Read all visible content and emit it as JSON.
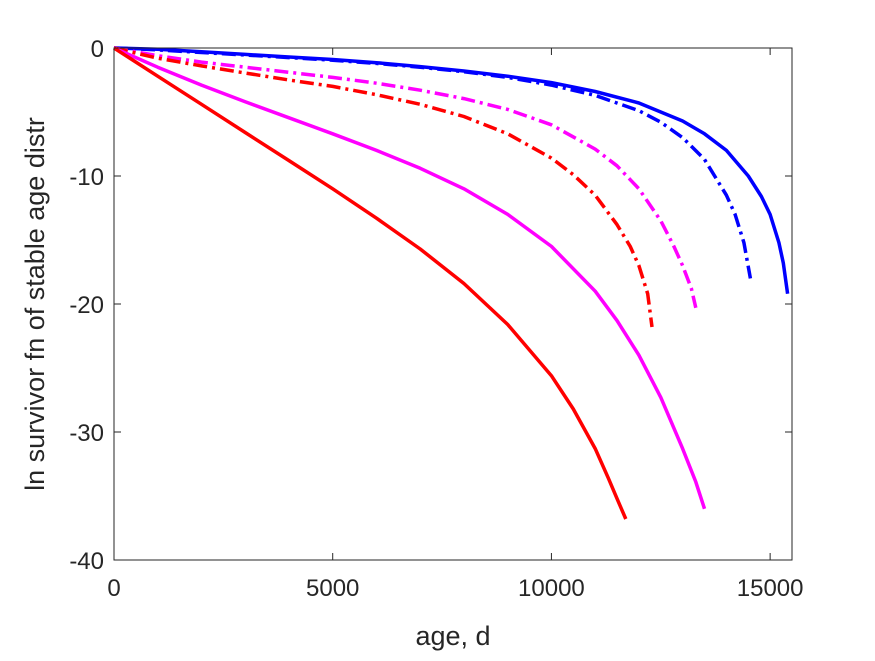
{
  "chart_data": {
    "type": "line",
    "title": "",
    "xlabel": "age, d",
    "ylabel": "ln survivor fn of stable age distr",
    "xlim": [
      0,
      15500
    ],
    "ylim": [
      -40,
      0
    ],
    "xticks": [
      0,
      5000,
      10000,
      15000
    ],
    "yticks": [
      0,
      -10,
      -20,
      -30,
      -40
    ],
    "xtick_labels": [
      "0",
      "5000",
      "10000",
      "15000"
    ],
    "ytick_labels": [
      "0",
      "-10",
      "-20",
      "-30",
      "-40"
    ],
    "grid": false,
    "legend": "none",
    "series": [
      {
        "color": "#0000ff",
        "style": "solid",
        "x": [
          0,
          1000,
          2000,
          3000,
          4000,
          5000,
          6000,
          7000,
          8000,
          9000,
          10000,
          11000,
          12000,
          13000,
          13500,
          14000,
          14500,
          14800,
          15000,
          15200,
          15300,
          15400
        ],
        "y": [
          0,
          -0.1,
          -0.3,
          -0.5,
          -0.7,
          -0.9,
          -1.15,
          -1.45,
          -1.8,
          -2.2,
          -2.7,
          -3.4,
          -4.3,
          -5.7,
          -6.7,
          -8.0,
          -10.0,
          -11.6,
          -13.0,
          -15.2,
          -16.8,
          -19.2
        ]
      },
      {
        "color": "#0000ff",
        "style": "dashdot",
        "x": [
          0,
          1000,
          2000,
          3000,
          4000,
          5000,
          6000,
          7000,
          8000,
          9000,
          10000,
          11000,
          12000,
          12500,
          13000,
          13500,
          14000,
          14200,
          14400,
          14550
        ],
        "y": [
          0,
          -0.15,
          -0.35,
          -0.55,
          -0.75,
          -0.95,
          -1.2,
          -1.5,
          -1.85,
          -2.3,
          -2.9,
          -3.7,
          -4.9,
          -5.8,
          -7.0,
          -8.7,
          -11.5,
          -13.0,
          -15.2,
          -18.0
        ]
      },
      {
        "color": "#ff00ff",
        "style": "dashdot",
        "x": [
          0,
          1000,
          2000,
          3000,
          4000,
          5000,
          6000,
          7000,
          8000,
          9000,
          10000,
          11000,
          11500,
          12000,
          12500,
          12800,
          13000,
          13200,
          13300
        ],
        "y": [
          0,
          -0.6,
          -1.1,
          -1.5,
          -1.9,
          -2.3,
          -2.75,
          -3.3,
          -3.95,
          -4.8,
          -6.0,
          -7.9,
          -9.2,
          -11.0,
          -13.5,
          -15.5,
          -17.0,
          -18.8,
          -20.3
        ]
      },
      {
        "color": "#ff0000",
        "style": "dashdot",
        "x": [
          0,
          1000,
          2000,
          3000,
          4000,
          5000,
          6000,
          7000,
          8000,
          9000,
          10000,
          10500,
          11000,
          11500,
          11800,
          12000,
          12200,
          12300
        ],
        "y": [
          0,
          -0.8,
          -1.4,
          -1.95,
          -2.5,
          -3.0,
          -3.65,
          -4.4,
          -5.35,
          -6.7,
          -8.6,
          -9.9,
          -11.5,
          -13.8,
          -15.5,
          -17.0,
          -19.2,
          -21.8
        ]
      },
      {
        "color": "#ff00ff",
        "style": "solid",
        "x": [
          0,
          1000,
          2000,
          3000,
          4000,
          5000,
          6000,
          7000,
          8000,
          9000,
          10000,
          11000,
          11500,
          12000,
          12500,
          13000,
          13300,
          13500
        ],
        "y": [
          0,
          -1.5,
          -2.9,
          -4.2,
          -5.45,
          -6.7,
          -8.0,
          -9.4,
          -11.0,
          -13.0,
          -15.5,
          -19.0,
          -21.3,
          -24.0,
          -27.3,
          -31.3,
          -33.9,
          -36.0
        ]
      },
      {
        "color": "#ff0000",
        "style": "solid",
        "x": [
          0,
          1000,
          2000,
          3000,
          4000,
          5000,
          6000,
          7000,
          8000,
          9000,
          10000,
          10500,
          11000,
          11300,
          11500,
          11700
        ],
        "y": [
          0,
          -2.2,
          -4.4,
          -6.6,
          -8.8,
          -11.0,
          -13.3,
          -15.7,
          -18.4,
          -21.6,
          -25.6,
          -28.2,
          -31.3,
          -33.6,
          -35.2,
          -36.8
        ]
      }
    ]
  }
}
